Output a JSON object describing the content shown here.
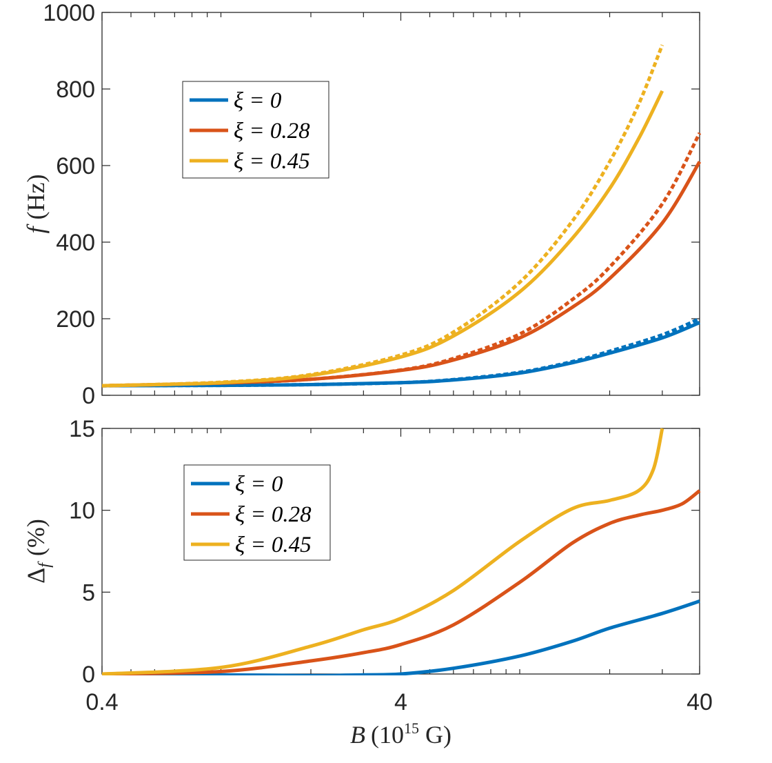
{
  "chart_data": [
    {
      "type": "line",
      "panel": "top",
      "ylabel": "f (Hz)",
      "ylabel_var": "f",
      "ylabel_unit": "(Hz)",
      "xscale": "log",
      "xlim": [
        0.4,
        40
      ],
      "ylim": [
        0,
        1000
      ],
      "yticks": [
        "0",
        "200",
        "400",
        "600",
        "800",
        "1000"
      ],
      "legend_location": "upper-left",
      "legend": [
        "ξ = 0",
        "ξ = 0.28",
        "ξ = 0.45"
      ],
      "series": [
        {
          "name": "ξ = 0",
          "color": "#0072BD",
          "style": "solid",
          "x": [
            0.4,
            1,
            2,
            4,
            6,
            10,
            15,
            20,
            30,
            40
          ],
          "y": [
            25,
            26,
            28,
            33,
            40,
            58,
            85,
            110,
            150,
            190
          ]
        },
        {
          "name": "ξ = 0 (dotted)",
          "color": "#0072BD",
          "style": "dotted",
          "x": [
            0.4,
            1,
            2,
            4,
            6,
            10,
            15,
            20,
            30,
            40
          ],
          "y": [
            25,
            26,
            28,
            33,
            41,
            60,
            88,
            115,
            158,
            200
          ]
        },
        {
          "name": "ξ = 0.28",
          "color": "#D95319",
          "style": "solid",
          "x": [
            0.4,
            1,
            2,
            4,
            6,
            10,
            15,
            20,
            30,
            40
          ],
          "y": [
            25,
            32,
            42,
            65,
            92,
            150,
            230,
            305,
            450,
            610
          ]
        },
        {
          "name": "ξ = 0.28 (dotted)",
          "color": "#D95319",
          "style": "dotted",
          "x": [
            0.4,
            1,
            2,
            4,
            6,
            10,
            15,
            20,
            30,
            40
          ],
          "y": [
            25,
            32,
            42,
            66,
            96,
            160,
            250,
            335,
            500,
            685
          ]
        },
        {
          "name": "ξ = 0.45",
          "color": "#EDB120",
          "style": "solid",
          "x": [
            0.4,
            1,
            2,
            4,
            6,
            10,
            15,
            20,
            25,
            30
          ],
          "y": [
            25,
            33,
            52,
            100,
            155,
            270,
            410,
            540,
            670,
            795
          ]
        },
        {
          "name": "ξ = 0.45 (dotted)",
          "color": "#EDB120",
          "style": "dotted",
          "x": [
            0.4,
            1,
            2,
            4,
            6,
            10,
            15,
            20,
            25,
            30
          ],
          "y": [
            25,
            34,
            54,
            105,
            165,
            295,
            455,
            610,
            760,
            915
          ]
        }
      ]
    },
    {
      "type": "line",
      "panel": "bottom",
      "xlabel": "B (10^15 G)",
      "xlabel_var": "B",
      "xlabel_base": "(10",
      "xlabel_exp": "15",
      "xlabel_unit": " G)",
      "ylabel": "Δ_f (%)",
      "ylabel_var": "Δ",
      "ylabel_sub": "f",
      "ylabel_unit": "(%)",
      "xscale": "log",
      "xlim": [
        0.4,
        40
      ],
      "ylim": [
        0,
        15
      ],
      "xticks": [
        "0.4",
        "4",
        "40"
      ],
      "yticks": [
        "0",
        "5",
        "10",
        "15"
      ],
      "legend_location": "upper-left",
      "legend": [
        "ξ = 0",
        "ξ = 0.28",
        "ξ = 0.45"
      ],
      "series": [
        {
          "name": "ξ = 0",
          "color": "#0072BD",
          "style": "solid",
          "x": [
            0.4,
            1,
            2,
            3,
            4,
            6,
            10,
            15,
            20,
            30,
            40
          ],
          "y": [
            0,
            -0.05,
            -0.1,
            -0.05,
            0,
            0.35,
            1.1,
            2.0,
            2.8,
            3.7,
            4.45
          ]
        },
        {
          "name": "ξ = 0.28",
          "color": "#D95319",
          "style": "solid",
          "x": [
            0.4,
            1,
            2,
            3,
            4,
            6,
            10,
            15,
            20,
            25,
            30,
            35,
            40
          ],
          "y": [
            0,
            0.15,
            0.8,
            1.3,
            1.8,
            3.0,
            5.6,
            8.0,
            9.2,
            9.7,
            10.0,
            10.4,
            11.2
          ]
        },
        {
          "name": "ξ = 0.45",
          "color": "#EDB120",
          "style": "solid",
          "x": [
            0.4,
            1,
            2,
            3,
            4,
            6,
            10,
            15,
            20,
            25,
            28,
            30
          ],
          "y": [
            0,
            0.4,
            1.7,
            2.7,
            3.4,
            5.1,
            8.1,
            10.1,
            10.6,
            11.2,
            12.5,
            15.0
          ]
        }
      ]
    }
  ]
}
